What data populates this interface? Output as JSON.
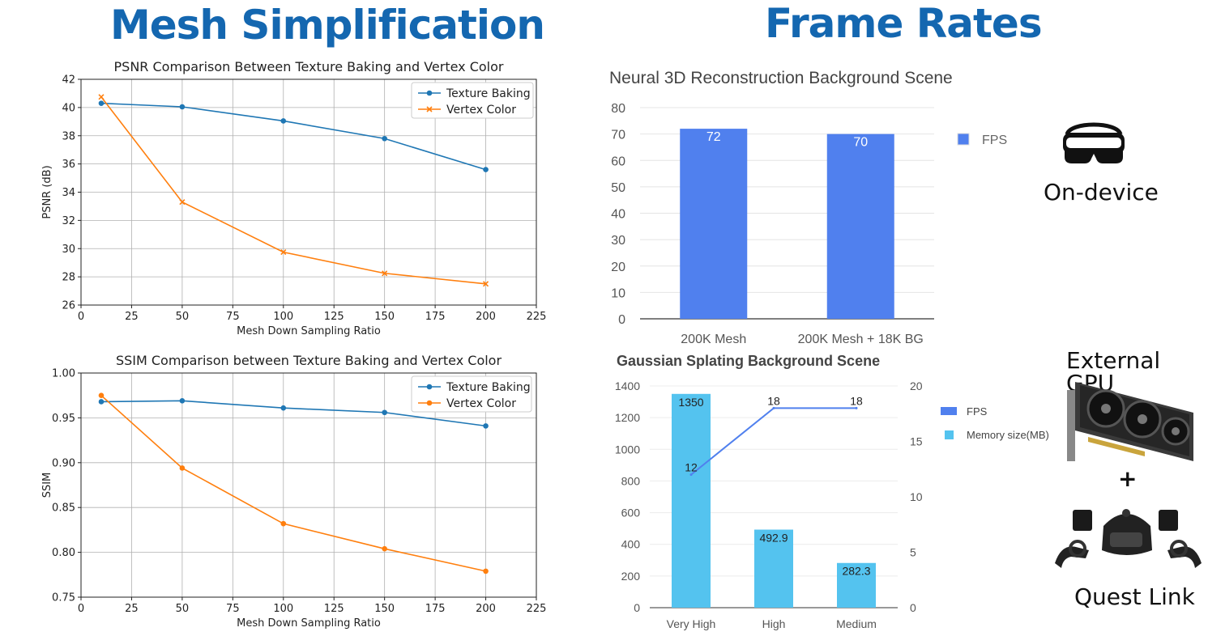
{
  "left_title": "Mesh Simplification",
  "right_title": "Frame Rates",
  "captions": {
    "on_device": "On-device",
    "external_gpu": "External GPU",
    "plus": "+",
    "quest_link": "Quest Link"
  },
  "icons": {
    "on_device": "vr-headset-icon",
    "external_gpu": "graphics-card-icon",
    "quest_link": "vr-headset-with-controllers-icon"
  },
  "colors": {
    "title_blue": "#1467b0",
    "mpl_blue": "#1f77b4",
    "mpl_orange": "#ff7f0e",
    "fps_bar": "#5080ee",
    "memory_bar": "#54c3ef"
  },
  "chart_data": [
    {
      "type": "line",
      "title": "PSNR Comparison Between Texture Baking and Vertex Color",
      "xlabel": "Mesh Down Sampling Ratio",
      "ylabel": "PSNR (dB)",
      "xlim": [
        0,
        225
      ],
      "ylim": [
        26,
        42
      ],
      "xticks": [
        0,
        25,
        50,
        75,
        100,
        125,
        150,
        175,
        200,
        225
      ],
      "yticks": [
        26,
        28,
        30,
        32,
        34,
        36,
        38,
        40,
        42
      ],
      "grid": true,
      "legend": "top-right",
      "x": [
        10,
        50,
        100,
        150,
        200
      ],
      "series": [
        {
          "name": "Texture Baking",
          "values": [
            40.3,
            40.05,
            39.05,
            37.8,
            35.6
          ],
          "color": "#1f77b4",
          "marker": "circle"
        },
        {
          "name": "Vertex Color",
          "values": [
            40.75,
            33.3,
            29.75,
            28.25,
            27.5
          ],
          "color": "#ff7f0e",
          "marker": "x"
        }
      ]
    },
    {
      "type": "line",
      "title": "SSIM Comparison between Texture Baking and Vertex Color",
      "xlabel": "Mesh Down Sampling Ratio",
      "ylabel": "SSIM",
      "xlim": [
        0,
        225
      ],
      "ylim": [
        0.75,
        1.0
      ],
      "xticks": [
        0,
        25,
        50,
        75,
        100,
        125,
        150,
        175,
        200,
        225
      ],
      "yticks": [
        "0.75",
        "0.80",
        "0.85",
        "0.90",
        "0.95",
        "1.00"
      ],
      "grid": true,
      "legend": "top-right",
      "x": [
        10,
        50,
        100,
        150,
        200
      ],
      "series": [
        {
          "name": "Texture Baking",
          "values": [
            0.968,
            0.969,
            0.961,
            0.956,
            0.941
          ],
          "color": "#1f77b4",
          "marker": "circle"
        },
        {
          "name": "Vertex Color",
          "values": [
            0.975,
            0.894,
            0.832,
            0.804,
            0.779
          ],
          "color": "#ff7f0e",
          "marker": "circle"
        }
      ]
    },
    {
      "type": "bar",
      "title": "Neural 3D  Reconstruction Background Scene",
      "categories": [
        "200K Mesh",
        "200K Mesh + 18K BG"
      ],
      "series": [
        {
          "name": "FPS",
          "values": [
            72,
            70
          ],
          "labels": [
            "72",
            "70"
          ],
          "color": "#5080ee"
        }
      ],
      "ylim": [
        0,
        80
      ],
      "yticks": [
        0,
        10,
        20,
        30,
        40,
        50,
        60,
        70,
        80
      ],
      "legend": "right"
    },
    {
      "type": "bar",
      "title": "Gaussian Splating Background Scene",
      "categories": [
        "Very High",
        "High",
        "Medium"
      ],
      "series": [
        {
          "name": "Memory size(MB)",
          "values": [
            1350,
            492.9,
            282.3
          ],
          "labels": [
            "1350",
            "492.9",
            "282.3"
          ],
          "color": "#54c3ef",
          "axis": "left"
        },
        {
          "name": "FPS",
          "values": [
            12,
            18,
            18
          ],
          "labels": [
            "12",
            "18",
            "18"
          ],
          "color": "#5080ee",
          "chart": "line",
          "axis": "right"
        }
      ],
      "legend_order": [
        "FPS",
        "Memory size(MB)"
      ],
      "ylim_left": [
        0,
        1400
      ],
      "yticks_left": [
        0,
        200,
        400,
        600,
        800,
        1000,
        1200,
        1400
      ],
      "ylim_right": [
        0,
        20
      ],
      "yticks_right": [
        0,
        5,
        10,
        15,
        20
      ],
      "legend": "right"
    }
  ]
}
